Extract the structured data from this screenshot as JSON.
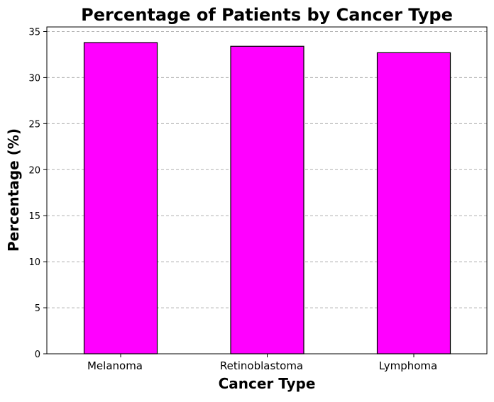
{
  "chart_data": {
    "type": "bar",
    "title": "Percentage of Patients by Cancer Type",
    "xlabel": "Cancer Type",
    "ylabel": "Percentage (%)",
    "categories": [
      "Melanoma",
      "Retinoblastoma",
      "Lymphoma"
    ],
    "values": [
      33.8,
      33.4,
      32.7
    ],
    "ylim": [
      0,
      35.5
    ],
    "yticks": [
      "0",
      "5",
      "10",
      "15",
      "20",
      "25",
      "30",
      "35"
    ],
    "grid": "y-dashed",
    "bar_color": "#ff00ff",
    "edge_color": "#000000",
    "grid_color": "#b0b0b0"
  }
}
